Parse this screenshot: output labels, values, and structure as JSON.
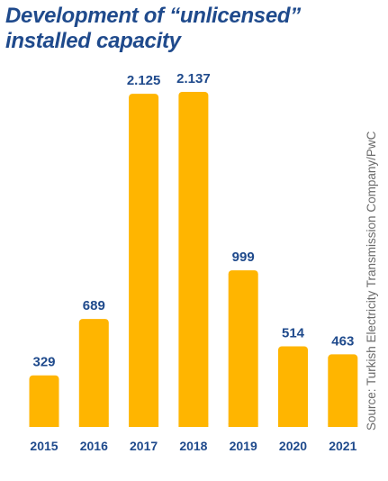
{
  "title": {
    "line1": "Development of “unlicensed”",
    "line2": "installed capacity"
  },
  "source": "Source: Turkish Electricity Transmission Company/PwC",
  "colors": {
    "bar": "#ffb500",
    "text": "#1f4a8c",
    "source": "#6b6b6b"
  },
  "chart_data": {
    "type": "bar",
    "title": "Development of “unlicensed” installed capacity",
    "xlabel": "",
    "ylabel": "",
    "categories": [
      "2015",
      "2016",
      "2017",
      "2018",
      "2019",
      "2020",
      "2021"
    ],
    "values": [
      329,
      689,
      2125,
      2137,
      999,
      514,
      463
    ],
    "value_labels": [
      "329",
      "689",
      "2.125",
      "2.137",
      "999",
      "514",
      "463"
    ],
    "ylim": [
      0,
      2137
    ],
    "grid": false,
    "legend": "none"
  }
}
